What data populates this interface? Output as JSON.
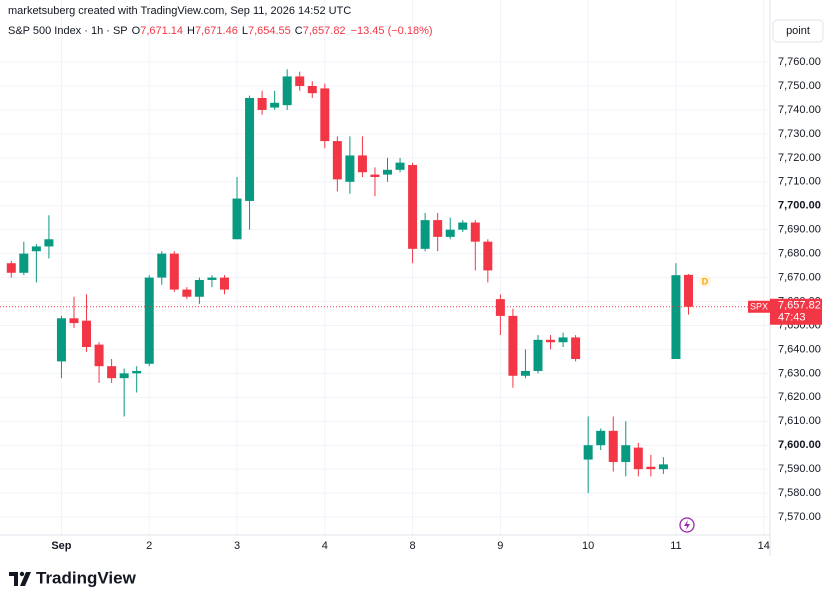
{
  "header": {
    "credit": "marketsuberg created with TradingView.com, Sep 11, 2026 14:52 UTC",
    "symbol": "S&P 500 Index · 1h · SP",
    "ohlc": [
      {
        "label": "O",
        "value": "7,671.14"
      },
      {
        "label": "H",
        "value": "7,671.46"
      },
      {
        "label": "L",
        "value": "7,654.55"
      },
      {
        "label": "C",
        "value": "7,657.82"
      }
    ],
    "change": "−13.45 (−0.18%)",
    "button": "point"
  },
  "chart_data": {
    "type": "candlestick",
    "series": [
      {
        "name": "SPX",
        "up_color": "#089981",
        "down_color": "#f23645",
        "open": [
          7676,
          7672,
          7681,
          7683,
          7635,
          7653,
          7652,
          7642,
          7633,
          7628,
          7630,
          7634,
          7670,
          7680,
          7665,
          7662,
          7669,
          7670,
          7686,
          7702,
          7745,
          7741,
          7742,
          7754,
          7750,
          7749,
          7727,
          7710,
          7721,
          7713,
          7713,
          7715,
          7717,
          7682,
          7694,
          7687,
          7690,
          7693,
          7685,
          7661,
          7654,
          7629,
          7631,
          7644,
          7643,
          7645,
          7594,
          7600,
          7606,
          7593,
          7599,
          7591,
          7590,
          7636,
          7671.14
        ],
        "high": [
          7677,
          7685,
          7684,
          7696,
          7654,
          7662,
          7663,
          7643,
          7636,
          7632,
          7633,
          7671,
          7681,
          7681,
          7666,
          7670,
          7671,
          7671,
          7712,
          7746,
          7748,
          7748,
          7757,
          7756,
          7752,
          7751,
          7729,
          7729,
          7729,
          7716,
          7720,
          7720,
          7718,
          7697,
          7697,
          7695,
          7694,
          7694,
          7686,
          7663,
          7657,
          7640,
          7646,
          7646,
          7647,
          7646,
          7612,
          7607,
          7612,
          7610,
          7601,
          7596,
          7595,
          7676,
          7671.46
        ],
        "low": [
          7670,
          7671,
          7668,
          7678,
          7628,
          7649,
          7639,
          7626,
          7626,
          7612,
          7622,
          7633,
          7667,
          7664,
          7661,
          7659,
          7666,
          7663,
          7686,
          7690,
          7738,
          7740,
          7740,
          7748,
          7745,
          7724,
          7706,
          7705,
          7712,
          7704,
          7710,
          7714,
          7676,
          7681,
          7681,
          7686,
          7689,
          7673,
          7668,
          7646,
          7624,
          7628,
          7630,
          7640,
          7641,
          7635,
          7580,
          7598,
          7589,
          7587,
          7587,
          7587,
          7588,
          7636,
          7654.55
        ],
        "close": [
          7672,
          7680,
          7683,
          7686,
          7653,
          7651,
          7641,
          7633,
          7628,
          7630,
          7631,
          7670,
          7680,
          7665,
          7662,
          7669,
          7670,
          7665,
          7703,
          7745,
          7740,
          7743,
          7754,
          7750,
          7747,
          7727,
          7711,
          7721,
          7714,
          7712,
          7715,
          7718,
          7682,
          7694,
          7687,
          7690,
          7693,
          7685,
          7673,
          7654,
          7629,
          7631,
          7644,
          7643,
          7645,
          7636,
          7600,
          7606,
          7593,
          7600,
          7590,
          7590,
          7592,
          7671,
          7657.82
        ]
      }
    ],
    "xlim": [
      -0.9,
      60.5
    ],
    "xticks": [
      {
        "value": 4,
        "label": "Sep"
      },
      {
        "value": 11,
        "label": "2"
      },
      {
        "value": 18,
        "label": "3"
      },
      {
        "value": 25,
        "label": "4"
      },
      {
        "value": 32,
        "label": "8"
      },
      {
        "value": 39,
        "label": "9"
      },
      {
        "value": 46,
        "label": "10"
      },
      {
        "value": 53,
        "label": "11"
      },
      {
        "value": 60,
        "label": "14"
      }
    ],
    "ylim": [
      7562.5,
      7778.4
    ],
    "yticks": [
      {
        "value": 7570,
        "label": "7,570.00"
      },
      {
        "value": 7580,
        "label": "7,580.00"
      },
      {
        "value": 7590,
        "label": "7,590.00"
      },
      {
        "value": 7600,
        "label": "7,600.00"
      },
      {
        "value": 7610,
        "label": "7,610.00"
      },
      {
        "value": 7620,
        "label": "7,620.00"
      },
      {
        "value": 7630,
        "label": "7,630.00"
      },
      {
        "value": 7640,
        "label": "7,640.00"
      },
      {
        "value": 7650,
        "label": "7,650.00"
      },
      {
        "value": 7660,
        "label": "7,660.00"
      },
      {
        "value": 7670,
        "label": "7,670.00"
      },
      {
        "value": 7680,
        "label": "7,680.00"
      },
      {
        "value": 7690,
        "label": "7,690.00"
      },
      {
        "value": 7700,
        "label": "7,700.00"
      },
      {
        "value": 7710,
        "label": "7,710.00"
      },
      {
        "value": 7720,
        "label": "7,720.00"
      },
      {
        "value": 7730,
        "label": "7,730.00"
      },
      {
        "value": 7740,
        "label": "7,740.00"
      },
      {
        "value": 7750,
        "label": "7,750.00"
      },
      {
        "value": 7760,
        "label": "7,760.00"
      }
    ],
    "grid": true,
    "last_price": {
      "value": 7657.82,
      "label": "7,657.82",
      "countdown": "47:43",
      "color": "#f23645"
    },
    "event_marker": "D"
  },
  "footer": {
    "brand": "TradingView"
  }
}
